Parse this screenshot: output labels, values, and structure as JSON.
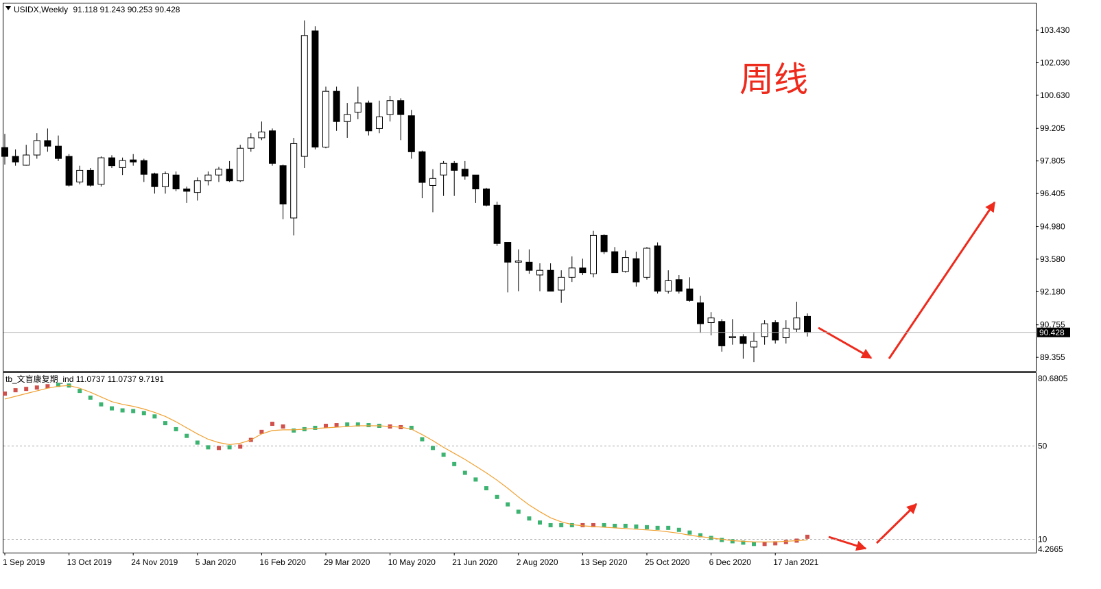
{
  "chart_data": [
    {
      "type": "candlestick",
      "title": "USIDX,Weekly",
      "annotation": "周线",
      "up_color": "#ffffff",
      "down_color": "#000000",
      "last_price_line": true,
      "categories": [
        "1 Sep 2019",
        null,
        null,
        null,
        null,
        null,
        "13 Oct 2019",
        null,
        null,
        null,
        null,
        null,
        "24 Nov 2019",
        null,
        null,
        null,
        null,
        null,
        "5 Jan 2020",
        null,
        null,
        null,
        null,
        null,
        "16 Feb 2020",
        null,
        null,
        null,
        null,
        null,
        "29 Mar 2020",
        null,
        null,
        null,
        null,
        null,
        "10 May 2020",
        null,
        null,
        null,
        null,
        null,
        "21 Jun 2020",
        null,
        null,
        null,
        null,
        null,
        "2 Aug 2020",
        null,
        null,
        null,
        null,
        null,
        "13 Sep 2020",
        null,
        null,
        null,
        null,
        null,
        "25 Oct 2020",
        null,
        null,
        null,
        null,
        null,
        "6 Dec 2020",
        null,
        null,
        null,
        null,
        null,
        "17 Jan 2021",
        null,
        null,
        null
      ],
      "open": [
        98.38,
        98.0,
        97.62,
        98.06,
        98.68,
        98.44,
        98.0,
        96.9,
        97.4,
        96.8,
        97.94,
        97.52,
        97.85,
        97.82,
        97.25,
        96.7,
        97.2,
        96.6,
        96.45,
        96.95,
        97.2,
        97.45,
        96.95,
        98.35,
        98.8,
        99.1,
        97.6,
        95.35,
        98.0,
        103.4,
        98.4,
        100.8,
        99.5,
        99.9,
        100.3,
        99.2,
        99.8,
        100.4,
        99.75,
        98.2,
        96.75,
        97.2,
        97.7,
        97.45,
        97.2,
        96.6,
        95.9,
        94.3,
        93.45,
        93.45,
        92.9,
        93.1,
        92.25,
        92.8,
        93.2,
        92.95,
        94.6,
        93.9,
        93.05,
        93.6,
        92.8,
        94.15,
        92.2,
        92.7,
        92.3,
        91.7,
        90.85,
        90.9,
        90.2,
        90.25,
        89.8,
        90.25,
        90.85,
        90.2,
        90.57,
        91.118
      ],
      "high": [
        98.97,
        98.3,
        98.5,
        99.0,
        99.2,
        98.9,
        98.1,
        97.6,
        97.5,
        98.0,
        98.05,
        97.95,
        98.1,
        97.9,
        97.3,
        97.35,
        97.35,
        96.7,
        97.1,
        97.35,
        97.55,
        97.8,
        98.5,
        99.0,
        99.5,
        99.2,
        97.65,
        98.8,
        103.85,
        103.6,
        101.0,
        101.0,
        100.3,
        101.0,
        100.4,
        100.4,
        100.6,
        100.5,
        100.0,
        98.25,
        97.45,
        97.8,
        97.8,
        97.8,
        97.2,
        96.65,
        96.05,
        94.3,
        94.0,
        94.0,
        93.4,
        93.4,
        93.1,
        93.7,
        93.6,
        94.8,
        94.65,
        94.1,
        93.95,
        93.9,
        94.1,
        94.3,
        93.1,
        92.9,
        92.8,
        92.0,
        91.3,
        91.0,
        91.0,
        90.35,
        90.45,
        90.95,
        90.95,
        90.95,
        91.75,
        91.243
      ],
      "low": [
        97.65,
        97.6,
        97.6,
        97.9,
        98.2,
        97.8,
        96.7,
        96.8,
        96.7,
        96.7,
        97.5,
        97.2,
        97.6,
        96.9,
        96.4,
        96.4,
        96.5,
        96.0,
        96.1,
        96.75,
        96.9,
        96.9,
        96.9,
        98.2,
        98.7,
        97.6,
        95.3,
        94.6,
        97.5,
        98.3,
        98.35,
        99.1,
        98.8,
        99.6,
        98.9,
        99.0,
        99.5,
        98.7,
        97.9,
        96.2,
        95.6,
        96.3,
        96.3,
        97.0,
        96.0,
        95.85,
        94.15,
        92.15,
        92.2,
        92.95,
        92.2,
        92.2,
        91.7,
        92.6,
        92.9,
        92.8,
        93.8,
        93.0,
        93.0,
        92.4,
        92.7,
        92.1,
        92.1,
        92.1,
        91.75,
        90.4,
        90.3,
        89.6,
        89.9,
        89.3,
        89.15,
        89.9,
        89.95,
        89.95,
        90.45,
        90.253
      ],
      "close": [
        98.0,
        97.76,
        98.06,
        98.68,
        98.44,
        97.91,
        96.76,
        97.4,
        96.76,
        97.94,
        97.6,
        97.82,
        97.76,
        97.23,
        96.7,
        97.25,
        96.6,
        96.5,
        96.95,
        97.2,
        97.45,
        96.95,
        98.35,
        98.8,
        99.05,
        97.7,
        95.95,
        98.55,
        103.2,
        98.4,
        100.8,
        99.5,
        99.8,
        100.3,
        99.1,
        99.7,
        100.4,
        99.8,
        98.2,
        96.88,
        97.05,
        97.7,
        97.4,
        97.15,
        96.6,
        95.9,
        94.25,
        93.45,
        93.5,
        93.1,
        93.1,
        92.2,
        92.8,
        93.2,
        93.0,
        94.6,
        93.9,
        93.0,
        93.65,
        92.6,
        94.05,
        92.2,
        92.65,
        92.2,
        91.8,
        90.8,
        91.05,
        89.85,
        90.25,
        89.95,
        90.05,
        90.8,
        90.1,
        90.6,
        91.05,
        90.428
      ],
      "ylim": [
        88.77,
        104.61
      ],
      "yticks": [
        {
          "value": 103.43,
          "label": "103.430"
        },
        {
          "value": 102.03,
          "label": "102.030"
        },
        {
          "value": 100.63,
          "label": "100.630"
        },
        99.205,
        97.805,
        96.405,
        {
          "value": 94.98,
          "label": "94.980"
        },
        {
          "value": 93.58,
          "label": "93.580"
        },
        {
          "value": 92.18,
          "label": "92.180"
        },
        90.755,
        89.355
      ]
    },
    {
      "type": "indicator",
      "title": "tb_文盲康复期_ind",
      "readout": [
        11.0737,
        11.0737,
        9.7191
      ],
      "ylim": [
        4.2665,
        80.6805
      ],
      "yticks": [
        80.6805,
        50,
        10,
        4.2665
      ],
      "levels": [
        50,
        10
      ],
      "series": [
        {
          "style": "square",
          "color": "#d0504c",
          "values": [
            72.45,
            73.89,
            74.46,
            75.04,
            75.61,
            null,
            null,
            null,
            null,
            null,
            null,
            null,
            null,
            null,
            null,
            null,
            null,
            null,
            null,
            null,
            49.14,
            null,
            49.71,
            52.59,
            56.04,
            59.5,
            58.35,
            null,
            null,
            null,
            58.63,
            58.92,
            null,
            null,
            null,
            null,
            58.35,
            58.06,
            null,
            null,
            null,
            null,
            null,
            null,
            null,
            null,
            null,
            null,
            null,
            null,
            null,
            null,
            null,
            null,
            16.04,
            16.04,
            null,
            null,
            null,
            null,
            null,
            null,
            null,
            null,
            null,
            null,
            null,
            null,
            null,
            null,
            null,
            7.99,
            8.27,
            8.85,
            9.42,
            11.0737
          ]
        },
        {
          "style": "square",
          "color": "#3cb371",
          "values": [
            null,
            null,
            null,
            null,
            null,
            76.19,
            75.9,
            73.6,
            70.72,
            67.84,
            66.11,
            65.25,
            64.96,
            64.1,
            62.66,
            59.78,
            57.19,
            54.32,
            51.44,
            49.42,
            null,
            49.42,
            null,
            null,
            null,
            null,
            null,
            56.62,
            57.19,
            57.77,
            null,
            null,
            59.21,
            59.21,
            58.92,
            58.63,
            null,
            null,
            57.77,
            52.88,
            49.14,
            46.26,
            42.23,
            38.49,
            35.61,
            31.87,
            28.13,
            24.96,
            21.8,
            18.92,
            17.19,
            16.04,
            16.04,
            16.04,
            null,
            null,
            16.04,
            15.76,
            15.76,
            15.47,
            15.18,
            14.89,
            14.89,
            14.03,
            12.88,
            11.73,
            10.58,
            9.71,
            9.14,
            8.56,
            7.99,
            null,
            null,
            null,
            null,
            null
          ]
        },
        {
          "style": "line",
          "color": "#f0a030",
          "values": [
            70.14,
            71.29,
            72.45,
            73.6,
            74.75,
            75.61,
            75.9,
            74.75,
            73.02,
            71.01,
            68.99,
            67.84,
            66.98,
            65.83,
            64.39,
            62.66,
            60.36,
            57.77,
            55.18,
            52.88,
            51.44,
            50.58,
            51.15,
            52.59,
            55.18,
            56.62,
            56.91,
            56.91,
            57.19,
            57.48,
            57.77,
            58.06,
            58.35,
            58.63,
            58.63,
            58.63,
            58.35,
            58.06,
            57.19,
            54.89,
            52.3,
            49.42,
            46.83,
            44.24,
            41.37,
            38.49,
            35.32,
            31.87,
            28.13,
            24.68,
            21.8,
            19.21,
            17.48,
            16.33,
            15.76,
            15.47,
            15.18,
            14.89,
            14.6,
            14.32,
            14.03,
            13.74,
            13.17,
            12.59,
            11.73,
            11.15,
            10.58,
            10.0,
            9.42,
            9.14,
            8.85,
            8.85,
            8.85,
            9.14,
            9.42,
            9.7191
          ]
        }
      ]
    }
  ]
}
